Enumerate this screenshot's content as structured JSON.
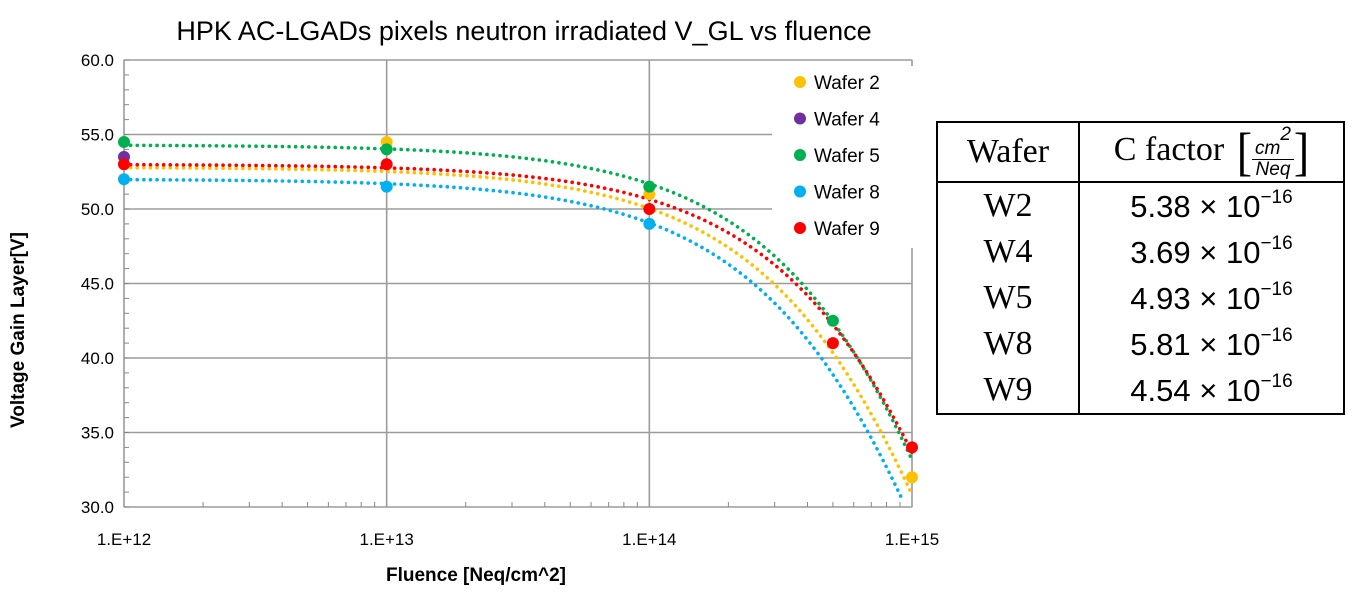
{
  "chart_data": {
    "type": "scatter",
    "title": "HPK AC-LGADs pixels neutron irradiated V_GL vs fluence",
    "xlabel": "Fluence [Neq/cm^2]",
    "ylabel": "Voltage Gain Layer[V]",
    "xscale": "log",
    "xlim": [
      1000000000000.0,
      1000000000000000.0
    ],
    "ylim": [
      30,
      60
    ],
    "x_tick_values": [
      1000000000000.0,
      10000000000000.0,
      100000000000000.0,
      1000000000000000.0
    ],
    "x_tick_labels": [
      "1.E+12",
      "1.E+13",
      "1.E+14",
      "1.E+15"
    ],
    "y_tick_values": [
      30,
      35,
      40,
      45,
      50,
      55,
      60
    ],
    "y_tick_labels": [
      "30.0",
      "35.0",
      "40.0",
      "45.0",
      "50.0",
      "55.0",
      "60.0"
    ],
    "grid": true,
    "legend_position": "top-right",
    "trendline": "dotted exponential fit per series",
    "series": [
      {
        "name": "Wafer 2",
        "color": "#FFC000",
        "x": [
          1000000000000.0,
          10000000000000.0,
          100000000000000.0,
          1000000000000000.0
        ],
        "y": [
          53.0,
          54.5,
          51.0,
          32.0
        ],
        "fit_v0": 52.8
      },
      {
        "name": "Wafer 4",
        "color": "#7030A0",
        "x": [
          1000000000000.0
        ],
        "y": [
          53.5
        ],
        "fit_v0": null
      },
      {
        "name": "Wafer 5",
        "color": "#00B050",
        "x": [
          1000000000000.0,
          10000000000000.0,
          100000000000000.0,
          500000000000000.0
        ],
        "y": [
          54.5,
          54.0,
          51.5,
          42.5
        ],
        "fit_v0": 54.3
      },
      {
        "name": "Wafer 8",
        "color": "#00B0F0",
        "x": [
          1000000000000.0,
          10000000000000.0,
          100000000000000.0
        ],
        "y": [
          52.0,
          51.5,
          49.0
        ],
        "fit_v0": 52.0
      },
      {
        "name": "Wafer 9",
        "color": "#FF0000",
        "x": [
          1000000000000.0,
          10000000000000.0,
          100000000000000.0,
          500000000000000.0,
          1000000000000000.0
        ],
        "y": [
          53.0,
          53.0,
          50.0,
          41.0,
          34.0
        ],
        "fit_v0": null
      }
    ]
  },
  "c_table": {
    "header_wafer": "Wafer",
    "header_c": "C factor",
    "unit_numerator": "cm",
    "unit_num_exp": "2",
    "unit_denominator": "Neq",
    "rows": [
      {
        "wafer": "W2",
        "mantissa": "5.38",
        "base": "× 10",
        "exp": "−16"
      },
      {
        "wafer": "W4",
        "mantissa": "3.69",
        "base": "× 10",
        "exp": "−16"
      },
      {
        "wafer": "W5",
        "mantissa": "4.93",
        "base": "× 10",
        "exp": "−16"
      },
      {
        "wafer": "W8",
        "mantissa": "5.81",
        "base": "× 10",
        "exp": "−16"
      },
      {
        "wafer": "W9",
        "mantissa": "4.54",
        "base": "× 10",
        "exp": "−16"
      }
    ]
  }
}
